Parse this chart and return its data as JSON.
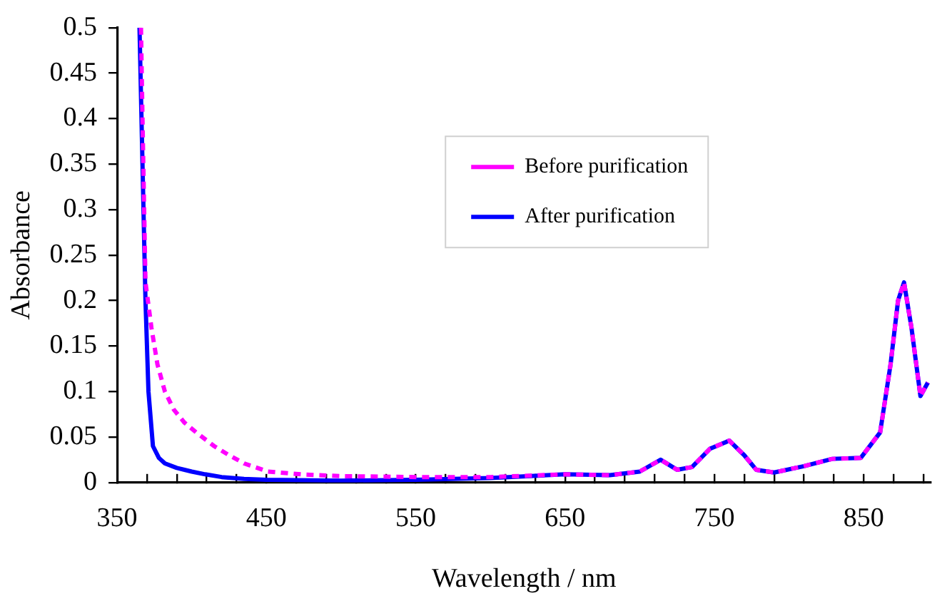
{
  "chart_data": {
    "type": "line",
    "xlabel": "Wavelength / nm",
    "ylabel": "Absorbance",
    "xlim": [
      350,
      895
    ],
    "ylim": [
      0,
      0.5
    ],
    "xticks": [
      350,
      {
        "value": 370,
        "label": null
      },
      {
        "value": 390,
        "label": null
      },
      {
        "value": 410,
        "label": null
      },
      {
        "value": 430,
        "label": null
      },
      450,
      {
        "value": 470,
        "label": null
      },
      {
        "value": 490,
        "label": null
      },
      {
        "value": 510,
        "label": null
      },
      {
        "value": 530,
        "label": null
      },
      550,
      {
        "value": 570,
        "label": null
      },
      {
        "value": 590,
        "label": null
      },
      {
        "value": 610,
        "label": null
      },
      {
        "value": 630,
        "label": null
      },
      650,
      {
        "value": 670,
        "label": null
      },
      {
        "value": 690,
        "label": null
      },
      {
        "value": 710,
        "label": null
      },
      {
        "value": 730,
        "label": null
      },
      750,
      {
        "value": 770,
        "label": null
      },
      {
        "value": 790,
        "label": null
      },
      {
        "value": 810,
        "label": null
      },
      {
        "value": 830,
        "label": null
      },
      850,
      {
        "value": 870,
        "label": null
      },
      {
        "value": 890,
        "label": null
      }
    ],
    "yticks": [
      0,
      0.05,
      0.1,
      0.15,
      0.2,
      0.25,
      0.3,
      0.35,
      0.4,
      0.45,
      0.5
    ],
    "grid": false,
    "legend": "top right",
    "marker": "none",
    "series": [
      {
        "name": "Before purification",
        "color": "#ff00ff",
        "line_style": "dashed",
        "x": [
          366,
          367,
          369,
          373,
          377,
          382,
          388,
          395,
          403,
          415,
          425,
          435,
          451,
          473,
          500,
          550,
          600,
          650,
          680,
          700,
          714,
          725,
          735,
          747,
          760,
          770,
          778,
          790,
          810,
          829,
          848,
          861,
          868,
          873,
          877,
          882,
          888,
          893
        ],
        "values": [
          0.5,
          0.4,
          0.22,
          0.17,
          0.13,
          0.1,
          0.08,
          0.066,
          0.055,
          0.04,
          0.03,
          0.021,
          0.012,
          0.009,
          0.007,
          0.006,
          0.006,
          0.009,
          0.008,
          0.012,
          0.025,
          0.014,
          0.017,
          0.037,
          0.046,
          0.03,
          0.014,
          0.011,
          0.018,
          0.026,
          0.027,
          0.055,
          0.13,
          0.2,
          0.22,
          0.17,
          0.095,
          0.11
        ]
      },
      {
        "name": "After purification",
        "color": "#0000ff",
        "line_style": "solid",
        "x": [
          365,
          367,
          369,
          371,
          374,
          378,
          382,
          390,
          400,
          409,
          420,
          435,
          450,
          500,
          550,
          600,
          650,
          680,
          700,
          714,
          725,
          735,
          747,
          760,
          770,
          778,
          790,
          810,
          829,
          848,
          861,
          868,
          873,
          877,
          882,
          888,
          893
        ],
        "values": [
          0.5,
          0.35,
          0.2,
          0.1,
          0.04,
          0.027,
          0.021,
          0.016,
          0.012,
          0.009,
          0.006,
          0.004,
          0.003,
          0.002,
          0.003,
          0.005,
          0.009,
          0.008,
          0.012,
          0.025,
          0.014,
          0.017,
          0.037,
          0.046,
          0.03,
          0.014,
          0.011,
          0.018,
          0.026,
          0.027,
          0.055,
          0.13,
          0.2,
          0.22,
          0.17,
          0.095,
          0.11
        ]
      }
    ]
  }
}
